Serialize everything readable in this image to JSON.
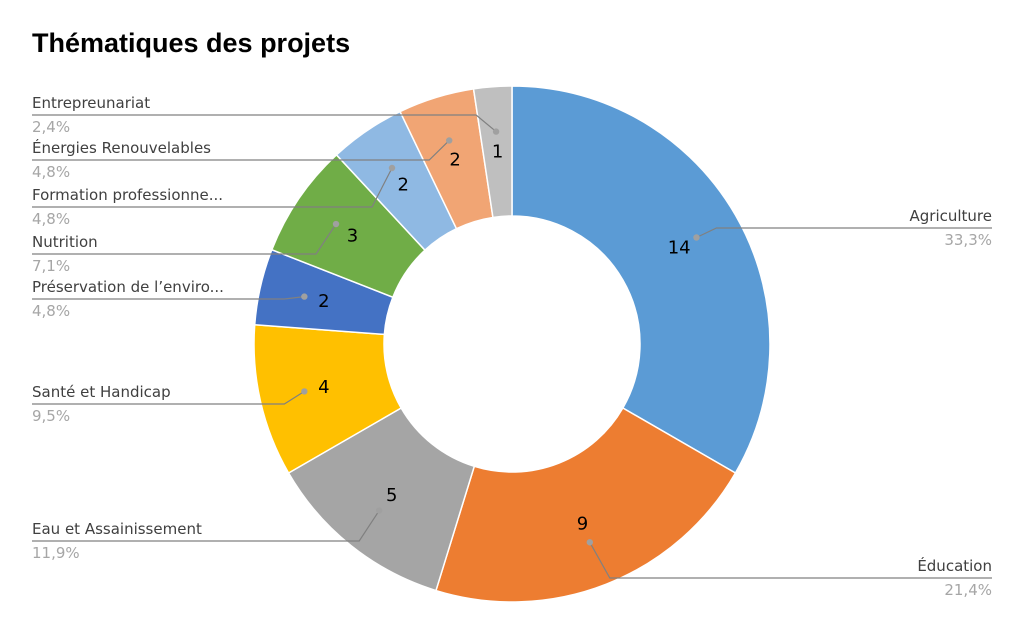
{
  "chart_data": {
    "type": "donut",
    "title": "Thématiques des projets",
    "categories": [
      "Agriculture",
      "Éducation",
      "Eau et Assainissement",
      "Santé et Handicap",
      "Préservation de l’enviro...",
      "Nutrition",
      "Formation professionne...",
      "Énergies Renouvelables",
      "Entrepreunariat"
    ],
    "values": [
      14,
      9,
      5,
      4,
      2,
      3,
      2,
      2,
      1
    ],
    "percentages": [
      "33,3%",
      "21,4%",
      "11,9%",
      "9,5%",
      "4,8%",
      "7,1%",
      "4,8%",
      "4,8%",
      "2,4%"
    ],
    "value_labels": [
      "14",
      "9",
      "5",
      "4",
      "2",
      "3",
      "2",
      "2",
      "1"
    ],
    "colors": [
      "#5B9BD5",
      "#ED7D31",
      "#A5A5A5",
      "#FFC000",
      "#4472C4",
      "#70AD47",
      "#8FB9E3",
      "#F1A574",
      "#BFBFBF"
    ],
    "legend": "none",
    "data_labels": "callouts"
  }
}
